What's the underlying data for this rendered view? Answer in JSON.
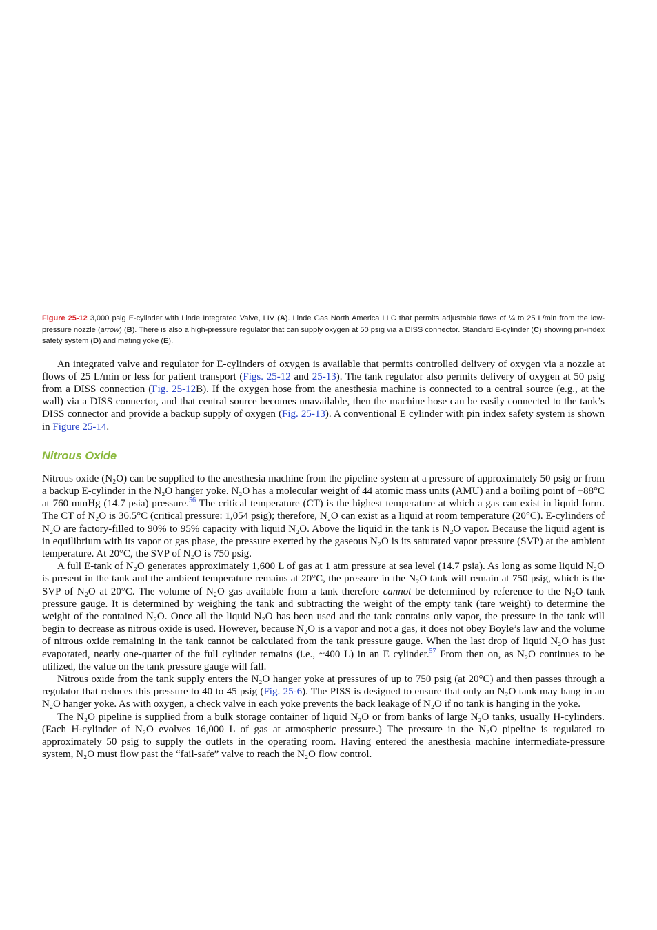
{
  "caption": [
    {
      "text": "Figure 25-12",
      "style": "label"
    },
    " 3,000 psig E-cylinder with Linde Integrated Valve, LIV (",
    {
      "text": "A",
      "style": "bold"
    },
    "). Linde Gas North America LLC that permits adjustable flows of ¼ to 25 L/min from the low-pressure nozzle (",
    {
      "text": "arrow",
      "style": "italic"
    },
    ") (",
    {
      "text": "B",
      "style": "bold"
    },
    "). There is also a high-pressure regulator that can supply oxygen at 50 psig via a DISS connector. Standard E-cylinder (",
    {
      "text": "C",
      "style": "bold"
    },
    ") showing pin-index safety system (",
    {
      "text": "D",
      "style": "bold"
    },
    ") and mating yoke (",
    {
      "text": "E",
      "style": "bold"
    },
    ")."
  ],
  "intro": [
    "An integrated valve and regulator for E-cylinders of oxygen is available that permits controlled delivery of oxygen via a nozzle at flows of 25 L/min or less for patient transport (",
    {
      "text": "Figs. 25-12",
      "style": "link"
    },
    " and ",
    {
      "text": "25-13",
      "style": "link"
    },
    "). The tank regulator also permits delivery of oxygen at 50 psig from a DISS connection (",
    {
      "text": "Fig. 25-12",
      "style": "link"
    },
    "B). If the oxygen hose from the anesthesia machine is connected to a central source (e.g., at the wall) via a DISS connector, and that central source becomes unavailable, then the machine hose can be easily connected to the tank’s DISS connector and provide a backup supply of oxygen (",
    {
      "text": "Fig. 25-13",
      "style": "link"
    },
    "). A conventional E cylinder with pin index safety system is shown in ",
    {
      "text": "Figure 25-14",
      "style": "link"
    },
    "."
  ],
  "section": {
    "heading": "Nitrous Oxide",
    "paragraphs": [
      [
        "Nitrous oxide (N₂O) can be supplied to the anesthesia machine from the pipeline system at a pressure of approximately 50 psig or from a backup E-cylinder in the N₂O hanger yoke. N₂O has a molecular weight of 44 atomic mass units (AMU) and a boiling point of −88°C at 760 mmHg (14.7 psia) pressure.",
        {
          "text": "56",
          "style": "sup"
        },
        " The critical temperature (CT) is the highest temperature at which a gas can exist in liquid form. The CT of N₂O is 36.5°C (critical pressure: 1,054 psig); therefore, N₂O can exist as a liquid at room temperature (20°C). E-cylinders of N₂O are factory-filled to 90% to 95% capacity with liquid N₂O. Above the liquid in the tank is N₂O vapor. Because the liquid agent is in equilibrium with its vapor or gas phase, the pressure exerted by the gaseous N₂O is its saturated vapor pressure (SVP) at the ambient temperature. At 20°C, the SVP of N₂O is 750 psig."
      ],
      [
        "A full E-tank of N₂O generates approximately 1,600 L of gas at 1 atm pressure at sea level (14.7 psia). As long as some liquid N₂O is present in the tank and the ambient temperature remains at 20°C, the pressure in the N₂O tank will remain at 750 psig, which is the SVP of N₂O at 20°C. The volume of N₂O gas available from a tank therefore ",
        {
          "text": "cannot",
          "style": "italic"
        },
        " be determined by reference to the N₂O tank pressure gauge. It is determined by weighing the tank and subtracting the weight of the empty tank (tare weight) to determine the weight of the contained N₂O. Once all the liquid N₂O has been used and the tank contains only vapor, the pressure in the tank will begin to decrease as nitrous oxide is used. However, because N₂O is a vapor and not a gas, it does not obey Boyle’s law and the volume of nitrous oxide remaining in the tank cannot be calculated from the tank pressure gauge. When the last drop of liquid N₂O has just evaporated, nearly one-quarter of the full cylinder remains (i.e., ~400 L) in an E cylinder.",
        {
          "text": "57",
          "style": "sup"
        },
        " From then on, as N₂O continues to be utilized, the value on the tank pressure gauge will fall."
      ],
      [
        "Nitrous oxide from the tank supply enters the N₂O hanger yoke at pressures of up to 750 psig (at 20°C) and then passes through a regulator that reduces this pressure to 40 to 45 psig (",
        {
          "text": "Fig. 25-6",
          "style": "link"
        },
        "). The PISS is designed to ensure that only an N₂O tank may hang in an N₂O hanger yoke. As with oxygen, a check valve in each yoke prevents the back leakage of N₂O if no tank is hanging in the yoke."
      ],
      [
        "The N₂O pipeline is supplied from a bulk storage container of liquid N₂O or from banks of large N₂O tanks, usually H-cylinders. (Each H-cylinder of N₂O evolves 16,000 L of gas at atmospheric pressure.) The pressure in the N₂O pipeline is regulated to approximately 50 psig to supply the outlets in the operating room. Having entered the anesthesia machine intermediate-pressure system, N₂O must flow past the “fail-safe” valve to reach the N₂O flow control."
      ]
    ]
  }
}
